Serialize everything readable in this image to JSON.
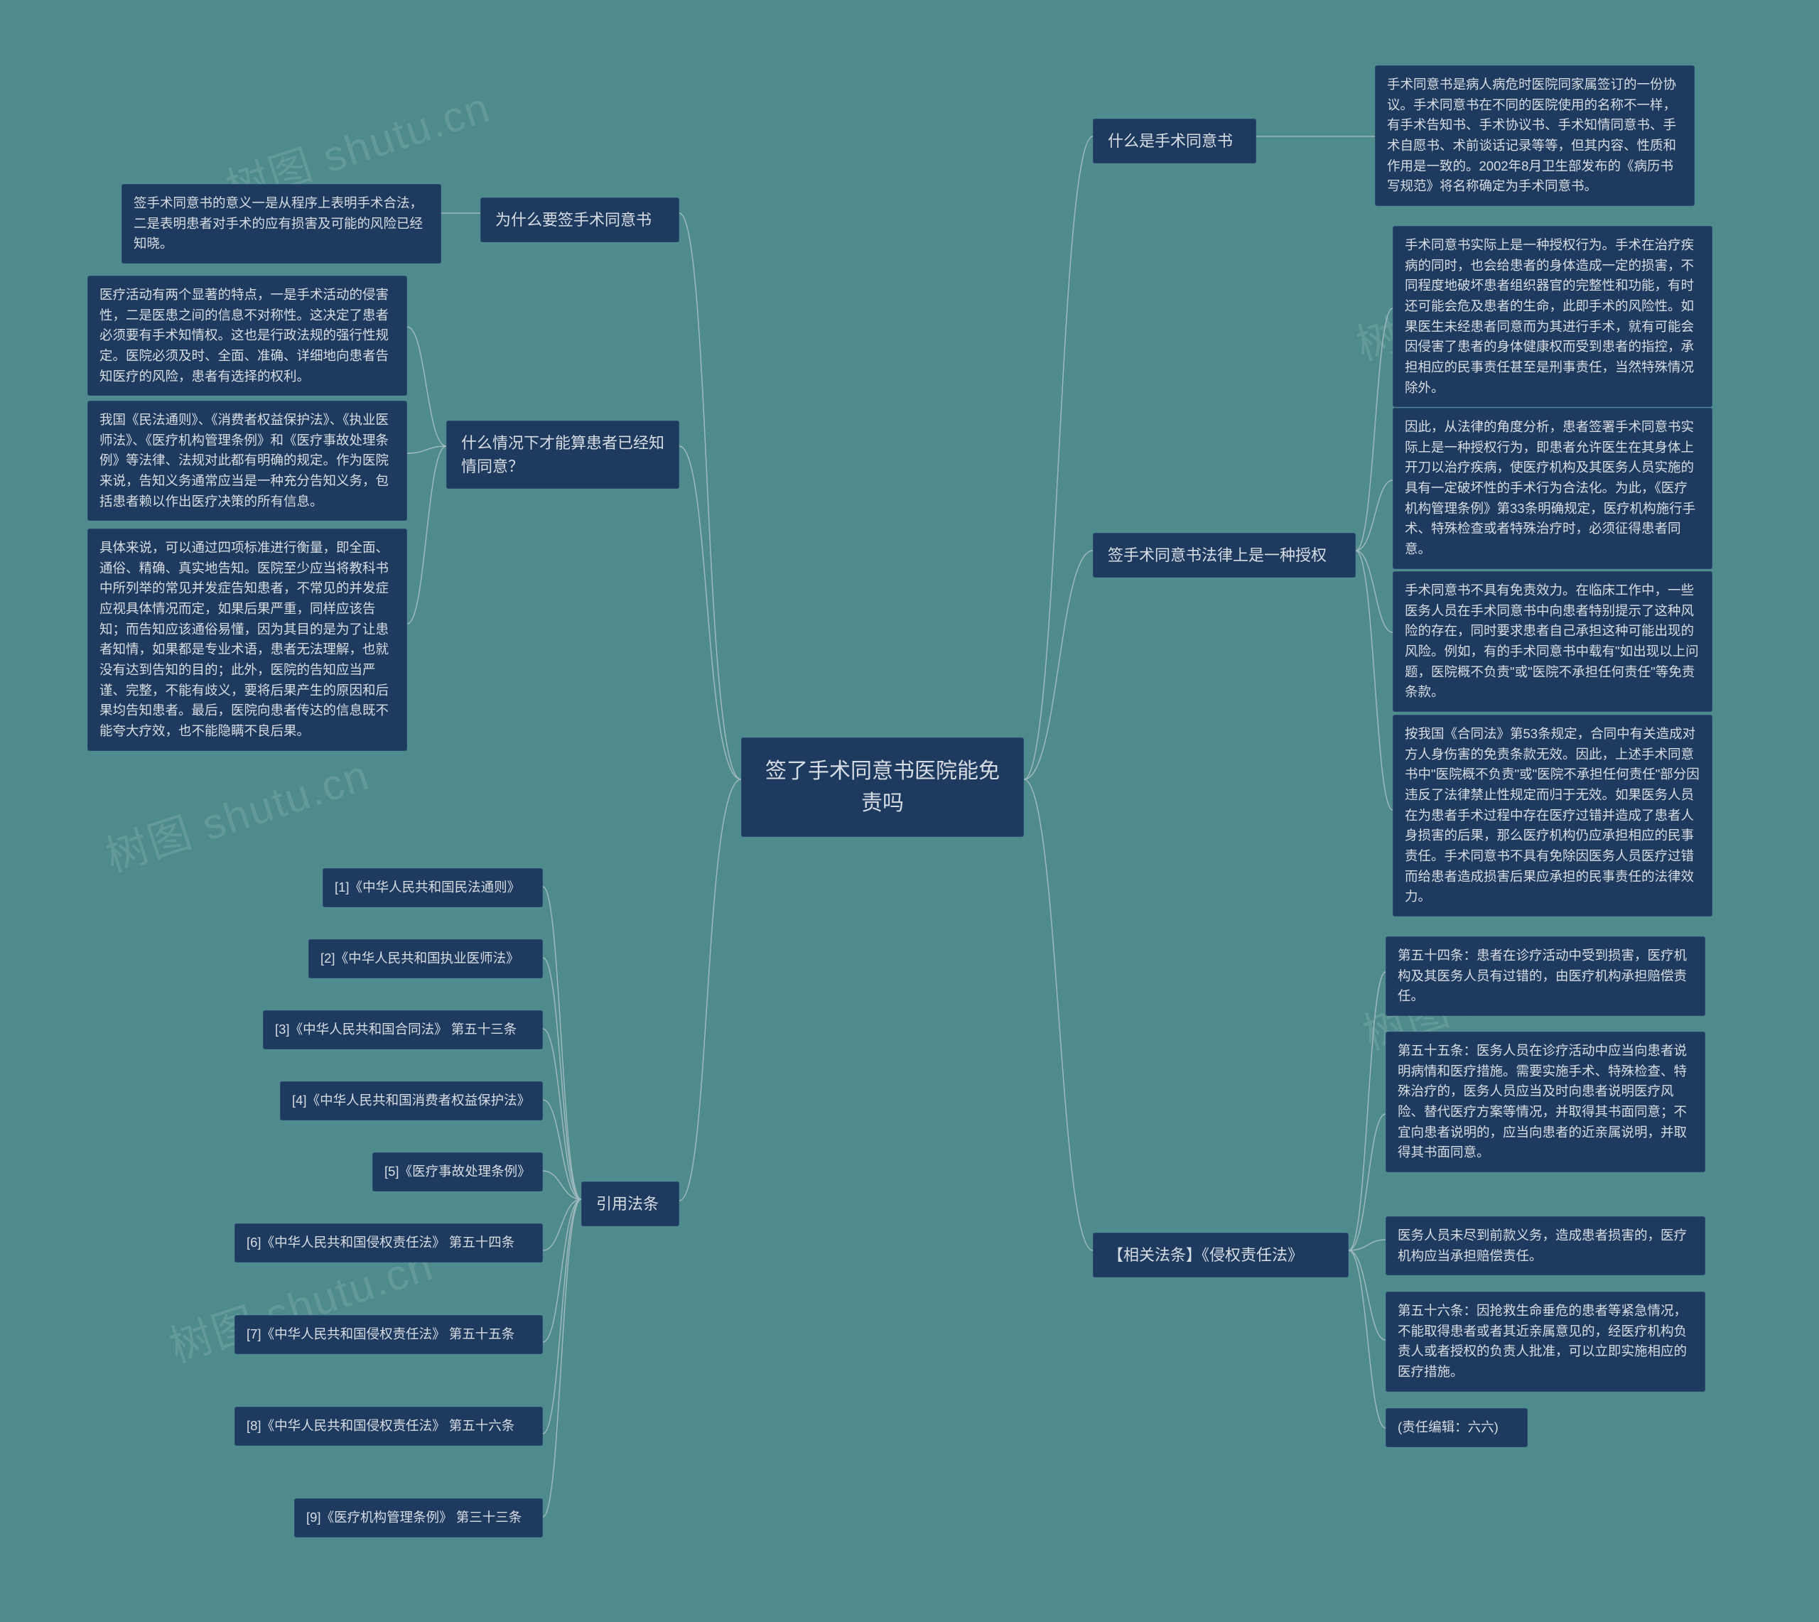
{
  "watermarks": [
    "树图 shutu.cn",
    "树图 shutu.cn",
    "树图 shutu.cn",
    "树图 shutu.cn",
    "树图 shutu.cn"
  ],
  "center": {
    "title": "签了手术同意书医院能免\n责吗"
  },
  "left": {
    "b1": {
      "label": "为什么要签手术同意书",
      "leaf1": "签手术同意书的意义一是从程序上表明手术合法，二是表明患者对手术的应有损害及可能的风险已经知晓。"
    },
    "b2": {
      "label": "什么情况下才能算患者已经知情同意？",
      "leaf1": "医疗活动有两个显著的特点，一是手术活动的侵害性，二是医患之间的信息不对称性。这决定了患者必须要有手术知情权。这也是行政法规的强行性规定。医院必须及时、全面、准确、详细地向患者告知医疗的风险，患者有选择的权利。",
      "leaf2": "我国《民法通则》、《消费者权益保护法》、《执业医师法》、《医疗机构管理条例》和《医疗事故处理条例》等法律、法规对此都有明确的规定。作为医院来说，告知义务通常应当是一种充分告知义务，包括患者赖以作出医疗决策的所有信息。",
      "leaf3": "具体来说，可以通过四项标准进行衡量，即全面、通俗、精确、真实地告知。医院至少应当将教科书中所列举的常见并发症告知患者，不常见的并发症应视具体情况而定，如果后果严重，同样应该告知；而告知应该通俗易懂，因为其目的是为了让患者知情，如果都是专业术语，患者无法理解，也就没有达到告知的目的；此外，医院的告知应当严谨、完整，不能有歧义，要将后果产生的原因和后果均告知患者。最后，医院向患者传达的信息既不能夸大疗效，也不能隐瞒不良后果。"
    },
    "b3": {
      "label": "引用法条",
      "items": [
        "[1]《中华人民共和国民法通则》",
        "[2]《中华人民共和国执业医师法》",
        "[3]《中华人民共和国合同法》 第五十三条",
        "[4]《中华人民共和国消费者权益保护法》",
        "[5]《医疗事故处理条例》",
        "[6]《中华人民共和国侵权责任法》 第五十四条",
        "[7]《中华人民共和国侵权责任法》 第五十五条",
        "[8]《中华人民共和国侵权责任法》 第五十六条",
        "[9]《医疗机构管理条例》 第三十三条"
      ]
    }
  },
  "right": {
    "b1": {
      "label": "什么是手术同意书",
      "leaf1": "手术同意书是病人病危时医院同家属签订的一份协议。手术同意书在不同的医院使用的名称不一样，有手术告知书、手术协议书、手术知情同意书、手术自愿书、术前谈话记录等等，但其内容、性质和作用是一致的。2002年8月卫生部发布的《病历书写规范》将名称确定为手术同意书。"
    },
    "b2": {
      "label": "签手术同意书法律上是一种授权",
      "leaf1": "手术同意书实际上是一种授权行为。手术在治疗疾病的同时，也会给患者的身体造成一定的损害，不同程度地破坏患者组织器官的完整性和功能，有时还可能会危及患者的生命，此即手术的风险性。如果医生未经患者同意而为其进行手术，就有可能会因侵害了患者的身体健康权而受到患者的指控，承担相应的民事责任甚至是刑事责任，当然特殊情况除外。",
      "leaf2": "因此，从法律的角度分析，患者签署手术同意书实际上是一种授权行为，即患者允许医生在其身体上开刀以治疗疾病，使医疗机构及其医务人员实施的具有一定破坏性的手术行为合法化。为此，《医疗机构管理条例》第33条明确规定，医疗机构施行手术、特殊检查或者特殊治疗时，必须征得患者同意。",
      "leaf3": "手术同意书不具有免责效力。在临床工作中，一些医务人员在手术同意书中向患者特别提示了这种风险的存在，同时要求患者自己承担这种可能出现的风险。例如，有的手术同意书中载有\"如出现以上问题，医院概不负责\"或\"医院不承担任何责任\"等免责条款。",
      "leaf4": "按我国《合同法》第53条规定，合同中有关造成对方人身伤害的免责条款无效。因此，上述手术同意书中\"医院概不负责\"或\"医院不承担任何责任\"部分因违反了法律禁止性规定而归于无效。如果医务人员在为患者手术过程中存在医疗过错并造成了患者人身损害的后果，那么医疗机构仍应承担相应的民事责任。手术同意书不具有免除因医务人员医疗过错而给患者造成损害后果应承担的民事责任的法律效力。"
    },
    "b3": {
      "label": "【相关法条】《侵权责任法》",
      "leaf1": "第五十四条：患者在诊疗活动中受到损害，医疗机构及其医务人员有过错的，由医疗机构承担赔偿责任。",
      "leaf2": "第五十五条：医务人员在诊疗活动中应当向患者说明病情和医疗措施。需要实施手术、特殊检查、特殊治疗的，医务人员应当及时向患者说明医疗风险、替代医疗方案等情况，并取得其书面同意；不宜向患者说明的，应当向患者的近亲属说明，并取得其书面同意。",
      "leaf3": "医务人员未尽到前款义务，造成患者损害的，医疗机构应当承担赔偿责任。",
      "leaf4": "第五十六条：因抢救生命垂危的患者等紧急情况，不能取得患者或者其近亲属意见的，经医疗机构负责人或者授权的负责人批准，可以立即实施相应的医疗措施。",
      "leaf5": "(责任编辑：六六)"
    }
  },
  "colors": {
    "background": "#4f8b8d",
    "node_bg": "#1e3a5f",
    "node_border": "#2a4a70",
    "text": "#d8dde3",
    "connector": "#9fb8bd",
    "watermark": "rgba(255,255,255,0.12)"
  }
}
